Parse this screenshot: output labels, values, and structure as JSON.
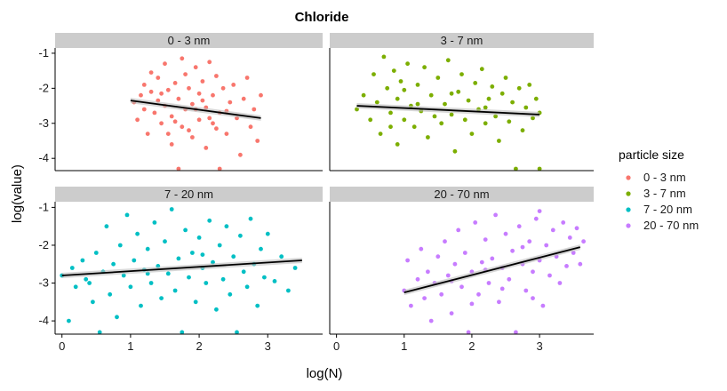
{
  "chart_data": {
    "type": "scatter",
    "title": "Chloride",
    "xlabel": "log(N)",
    "ylabel": "log(value)",
    "xlim": [
      -0.1,
      3.8
    ],
    "ylim": [
      -4.35,
      -0.85
    ],
    "x_ticks": [
      0,
      1,
      2,
      3
    ],
    "y_ticks": [
      -1,
      -2,
      -3,
      -4
    ],
    "x_tick_labels": [
      "0",
      "1",
      "2",
      "3"
    ],
    "y_tick_labels": [
      "-1",
      "-2",
      "-3",
      "-4"
    ],
    "grid": false,
    "legend": {
      "title": "particle size",
      "position": "right",
      "entries": [
        "0 - 3 nm",
        "3 - 7 nm",
        "7 - 20 nm",
        "20 - 70 nm"
      ]
    },
    "facets": [
      {
        "label": "0 - 3 nm",
        "color": "#F8766D",
        "fit": {
          "x": [
            1.0,
            2.9
          ],
          "y": [
            -2.35,
            -2.85
          ]
        },
        "points": [
          [
            1.05,
            -2.4
          ],
          [
            1.1,
            -2.9
          ],
          [
            1.15,
            -2.2
          ],
          [
            1.2,
            -2.6
          ],
          [
            1.2,
            -1.9
          ],
          [
            1.25,
            -3.3
          ],
          [
            1.3,
            -2.1
          ],
          [
            1.3,
            -1.55
          ],
          [
            1.35,
            -2.7
          ],
          [
            1.4,
            -2.35
          ],
          [
            1.4,
            -1.7
          ],
          [
            1.45,
            -3.0
          ],
          [
            1.5,
            -2.5
          ],
          [
            1.5,
            -1.3
          ],
          [
            1.55,
            -2.05
          ],
          [
            1.6,
            -3.6
          ],
          [
            1.6,
            -2.8
          ],
          [
            1.65,
            -1.85
          ],
          [
            1.7,
            -2.3
          ],
          [
            1.7,
            -4.3
          ],
          [
            1.75,
            -1.15
          ],
          [
            1.75,
            -3.1
          ],
          [
            1.8,
            -2.6
          ],
          [
            1.8,
            -1.6
          ],
          [
            1.85,
            -2.0
          ],
          [
            1.9,
            -3.4
          ],
          [
            1.9,
            -2.45
          ],
          [
            1.95,
            -1.4
          ],
          [
            2.0,
            -2.9
          ],
          [
            2.0,
            -2.15
          ],
          [
            2.05,
            -1.8
          ],
          [
            2.1,
            -3.7
          ],
          [
            2.1,
            -2.55
          ],
          [
            2.15,
            -1.25
          ],
          [
            2.2,
            -3.0
          ],
          [
            2.2,
            -2.2
          ],
          [
            2.25,
            -1.65
          ],
          [
            2.3,
            -2.7
          ],
          [
            2.3,
            -4.3
          ],
          [
            2.35,
            -2.0
          ],
          [
            2.4,
            -3.3
          ],
          [
            2.45,
            -2.4
          ],
          [
            2.5,
            -1.9
          ],
          [
            2.55,
            -2.85
          ],
          [
            2.6,
            -3.9
          ],
          [
            2.65,
            -2.3
          ],
          [
            2.7,
            -1.7
          ],
          [
            2.75,
            -3.1
          ],
          [
            2.8,
            -2.6
          ],
          [
            2.85,
            -3.5
          ],
          [
            2.9,
            -2.2
          ],
          [
            1.65,
            -2.95
          ],
          [
            1.85,
            -3.2
          ],
          [
            2.05,
            -2.35
          ],
          [
            2.25,
            -3.15
          ],
          [
            1.45,
            -2.15
          ],
          [
            1.95,
            -2.6
          ],
          [
            2.15,
            -2.85
          ],
          [
            2.4,
            -2.65
          ],
          [
            1.55,
            -3.3
          ]
        ]
      },
      {
        "label": "3 - 7 nm",
        "color": "#7CAE00",
        "fit": {
          "x": [
            0.3,
            3.0
          ],
          "y": [
            -2.5,
            -2.75
          ]
        },
        "points": [
          [
            0.3,
            -2.6
          ],
          [
            0.4,
            -2.2
          ],
          [
            0.5,
            -2.9
          ],
          [
            0.55,
            -1.6
          ],
          [
            0.6,
            -2.4
          ],
          [
            0.65,
            -3.3
          ],
          [
            0.7,
            -1.1
          ],
          [
            0.75,
            -2.0
          ],
          [
            0.8,
            -2.7
          ],
          [
            0.85,
            -1.5
          ],
          [
            0.9,
            -3.6
          ],
          [
            0.9,
            -2.3
          ],
          [
            0.95,
            -1.8
          ],
          [
            1.0,
            -2.9
          ],
          [
            1.05,
            -1.3
          ],
          [
            1.1,
            -2.5
          ],
          [
            1.15,
            -3.1
          ],
          [
            1.2,
            -1.9
          ],
          [
            1.25,
            -2.65
          ],
          [
            1.3,
            -1.4
          ],
          [
            1.35,
            -3.4
          ],
          [
            1.4,
            -2.2
          ],
          [
            1.45,
            -2.8
          ],
          [
            1.5,
            -1.7
          ],
          [
            1.55,
            -3.0
          ],
          [
            1.6,
            -2.45
          ],
          [
            1.65,
            -1.2
          ],
          [
            1.7,
            -2.75
          ],
          [
            1.75,
            -3.8
          ],
          [
            1.8,
            -2.1
          ],
          [
            1.85,
            -1.6
          ],
          [
            1.9,
            -2.9
          ],
          [
            1.95,
            -2.35
          ],
          [
            2.0,
            -3.3
          ],
          [
            2.05,
            -1.85
          ],
          [
            2.1,
            -2.6
          ],
          [
            2.15,
            -1.45
          ],
          [
            2.2,
            -3.0
          ],
          [
            2.25,
            -2.3
          ],
          [
            2.3,
            -1.95
          ],
          [
            2.35,
            -2.8
          ],
          [
            2.4,
            -3.5
          ],
          [
            2.45,
            -2.15
          ],
          [
            2.5,
            -1.7
          ],
          [
            2.55,
            -2.95
          ],
          [
            2.6,
            -2.4
          ],
          [
            2.65,
            -4.3
          ],
          [
            2.7,
            -2.0
          ],
          [
            2.75,
            -3.2
          ],
          [
            2.8,
            -2.55
          ],
          [
            2.85,
            -1.9
          ],
          [
            2.9,
            -2.85
          ],
          [
            2.95,
            -2.3
          ],
          [
            3.0,
            -4.3
          ],
          [
            3.0,
            -2.7
          ],
          [
            0.8,
            -3.1
          ],
          [
            1.2,
            -2.45
          ],
          [
            1.7,
            -2.15
          ],
          [
            2.2,
            -2.55
          ],
          [
            1.0,
            -2.05
          ]
        ]
      },
      {
        "label": "7 - 20 nm",
        "color": "#00BFC4",
        "fit": {
          "x": [
            0.0,
            3.5
          ],
          "y": [
            -2.8,
            -2.4
          ]
        },
        "points": [
          [
            0.0,
            -2.8
          ],
          [
            0.1,
            -4.0
          ],
          [
            0.15,
            -2.6
          ],
          [
            0.2,
            -3.1
          ],
          [
            0.3,
            -2.4
          ],
          [
            0.35,
            -2.9
          ],
          [
            0.45,
            -3.5
          ],
          [
            0.5,
            -2.2
          ],
          [
            0.55,
            -4.3
          ],
          [
            0.6,
            -2.7
          ],
          [
            0.65,
            -1.5
          ],
          [
            0.7,
            -3.3
          ],
          [
            0.75,
            -2.5
          ],
          [
            0.8,
            -3.9
          ],
          [
            0.85,
            -2.0
          ],
          [
            0.9,
            -2.8
          ],
          [
            0.95,
            -1.2
          ],
          [
            1.0,
            -3.1
          ],
          [
            1.05,
            -2.4
          ],
          [
            1.1,
            -1.7
          ],
          [
            1.15,
            -3.6
          ],
          [
            1.2,
            -2.65
          ],
          [
            1.25,
            -2.1
          ],
          [
            1.3,
            -3.0
          ],
          [
            1.35,
            -1.4
          ],
          [
            1.4,
            -2.55
          ],
          [
            1.45,
            -3.4
          ],
          [
            1.5,
            -1.9
          ],
          [
            1.55,
            -2.75
          ],
          [
            1.6,
            -1.05
          ],
          [
            1.65,
            -3.2
          ],
          [
            1.7,
            -2.35
          ],
          [
            1.75,
            -4.3
          ],
          [
            1.8,
            -1.6
          ],
          [
            1.85,
            -2.85
          ],
          [
            1.9,
            -2.2
          ],
          [
            1.95,
            -3.5
          ],
          [
            2.0,
            -1.8
          ],
          [
            2.05,
            -2.6
          ],
          [
            2.1,
            -3.0
          ],
          [
            2.15,
            -1.35
          ],
          [
            2.2,
            -2.45
          ],
          [
            2.25,
            -3.7
          ],
          [
            2.3,
            -2.0
          ],
          [
            2.35,
            -2.9
          ],
          [
            2.4,
            -1.5
          ],
          [
            2.45,
            -3.3
          ],
          [
            2.5,
            -2.3
          ],
          [
            2.55,
            -4.3
          ],
          [
            2.6,
            -1.75
          ],
          [
            2.65,
            -2.7
          ],
          [
            2.7,
            -3.1
          ],
          [
            2.75,
            -1.3
          ],
          [
            2.8,
            -2.5
          ],
          [
            2.85,
            -3.6
          ],
          [
            2.9,
            -2.1
          ],
          [
            2.95,
            -2.85
          ],
          [
            3.0,
            -1.7
          ],
          [
            3.1,
            -2.95
          ],
          [
            3.2,
            -2.3
          ],
          [
            3.3,
            -3.2
          ],
          [
            3.4,
            -2.6
          ],
          [
            0.4,
            -3.0
          ],
          [
            1.25,
            -2.75
          ],
          [
            2.05,
            -2.25
          ]
        ]
      },
      {
        "label": "20 - 70 nm",
        "color": "#C77CFF",
        "fit": {
          "x": [
            1.0,
            3.6
          ],
          "y": [
            -3.25,
            -2.05
          ]
        },
        "points": [
          [
            1.0,
            -3.2
          ],
          [
            1.05,
            -2.4
          ],
          [
            1.1,
            -3.6
          ],
          [
            1.2,
            -2.9
          ],
          [
            1.25,
            -2.1
          ],
          [
            1.3,
            -3.4
          ],
          [
            1.35,
            -2.7
          ],
          [
            1.4,
            -4.0
          ],
          [
            1.45,
            -3.0
          ],
          [
            1.5,
            -2.3
          ],
          [
            1.55,
            -3.3
          ],
          [
            1.6,
            -1.9
          ],
          [
            1.65,
            -2.8
          ],
          [
            1.7,
            -3.8
          ],
          [
            1.75,
            -2.5
          ],
          [
            1.8,
            -1.6
          ],
          [
            1.85,
            -3.1
          ],
          [
            1.9,
            -2.2
          ],
          [
            1.95,
            -4.3
          ],
          [
            2.0,
            -2.7
          ],
          [
            2.05,
            -1.4
          ],
          [
            2.1,
            -3.3
          ],
          [
            2.15,
            -2.45
          ],
          [
            2.2,
            -1.85
          ],
          [
            2.25,
            -3.0
          ],
          [
            2.3,
            -2.35
          ],
          [
            2.35,
            -1.2
          ],
          [
            2.4,
            -3.5
          ],
          [
            2.45,
            -2.6
          ],
          [
            2.5,
            -1.7
          ],
          [
            2.55,
            -2.9
          ],
          [
            2.6,
            -2.15
          ],
          [
            2.65,
            -4.3
          ],
          [
            2.7,
            -1.5
          ],
          [
            2.75,
            -2.5
          ],
          [
            2.8,
            -3.2
          ],
          [
            2.85,
            -1.9
          ],
          [
            2.9,
            -2.7
          ],
          [
            2.95,
            -1.3
          ],
          [
            3.0,
            -2.4
          ],
          [
            3.05,
            -3.6
          ],
          [
            3.1,
            -2.0
          ],
          [
            3.15,
            -2.8
          ],
          [
            3.2,
            -1.6
          ],
          [
            3.25,
            -2.3
          ],
          [
            3.3,
            -3.0
          ],
          [
            3.35,
            -1.4
          ],
          [
            3.4,
            -2.55
          ],
          [
            3.45,
            -1.8
          ],
          [
            3.5,
            -2.2
          ],
          [
            3.55,
            -1.55
          ],
          [
            3.6,
            -2.5
          ],
          [
            3.65,
            -1.9
          ],
          [
            2.0,
            -3.55
          ],
          [
            2.45,
            -3.15
          ],
          [
            2.9,
            -3.4
          ],
          [
            1.7,
            -2.95
          ],
          [
            3.0,
            -1.1
          ],
          [
            2.2,
            -2.65
          ],
          [
            2.75,
            -2.05
          ]
        ]
      }
    ]
  }
}
